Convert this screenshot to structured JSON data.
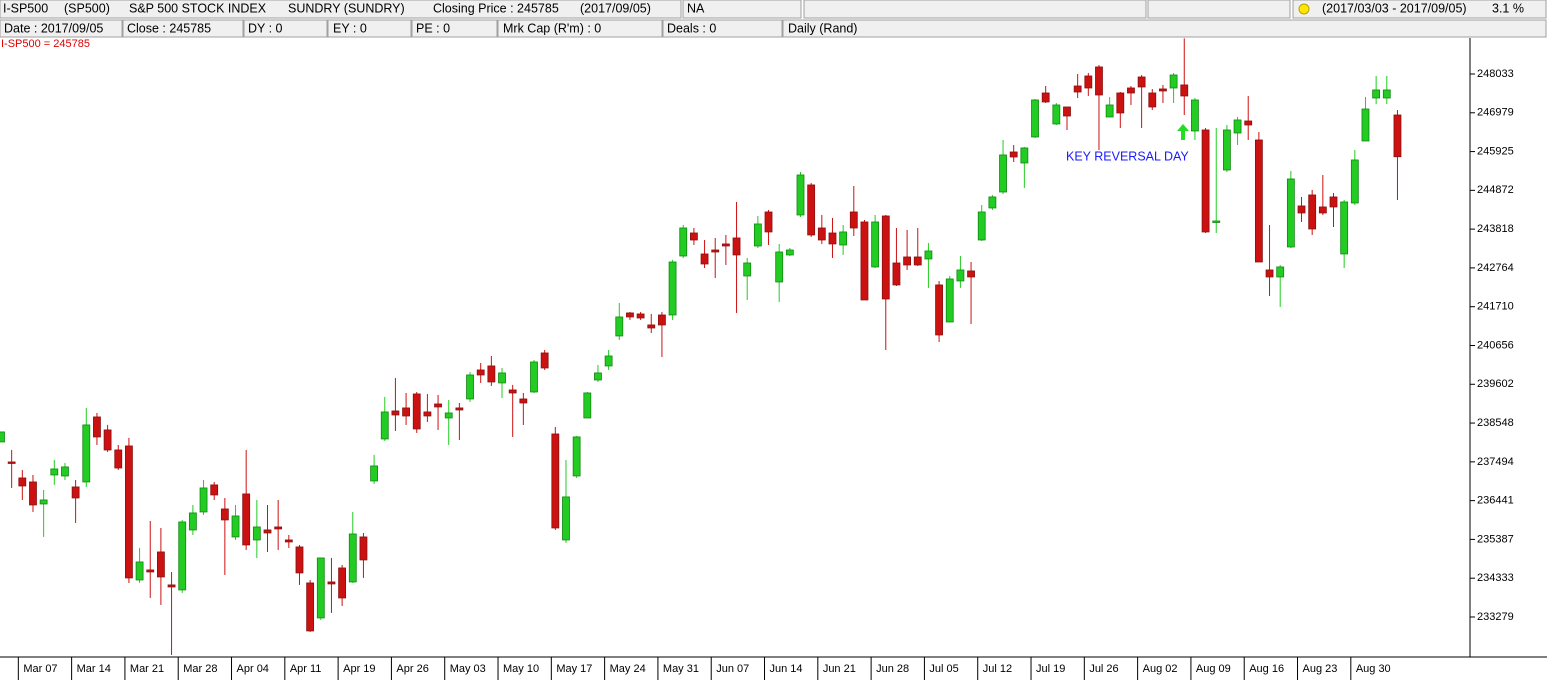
{
  "header": {
    "symbol": "I-SP500",
    "code": "(SP500)",
    "name": "S&P 500 STOCK INDEX",
    "sector": "SUNDRY (SUNDRY)",
    "closing_price": "Closing Price : 245785",
    "closing_date": "(2017/09/05)",
    "status": "NA",
    "period": "(2017/03/03 - 2017/09/05)",
    "change": "3.1 %"
  },
  "info": [
    "Date : 2017/09/05",
    "Close : 245785",
    "DY : 0",
    "EY : 0",
    "PE : 0",
    "Mrk Cap (R'm) : 0",
    "Deals : 0",
    "Daily (Rand)"
  ],
  "chart_data": {
    "type": "candlestick",
    "label": "I-SP500 = 245785",
    "annotation": "KEY REVERSAL DAY",
    "up_color": "#22cc22",
    "down_color": "#cc1111",
    "ylim": [
      232246,
      249011
    ],
    "yticks": [
      248033,
      246979,
      245925,
      244872,
      243818,
      242764,
      241710,
      240656,
      239602,
      238548,
      237494,
      236441,
      235387,
      234333,
      233279
    ],
    "categories": [
      null,
      null,
      "Mar 07",
      null,
      null,
      null,
      null,
      "Mar 14",
      null,
      null,
      null,
      null,
      "Mar 21",
      null,
      null,
      null,
      null,
      "Mar 28",
      null,
      null,
      null,
      null,
      "Apr 04",
      null,
      null,
      null,
      null,
      "Apr 11",
      null,
      null,
      null,
      null,
      "Apr 19",
      null,
      null,
      null,
      null,
      "Apr 26",
      null,
      null,
      null,
      null,
      "May 03",
      null,
      null,
      null,
      null,
      "May 10",
      null,
      null,
      null,
      null,
      "May 17",
      null,
      null,
      null,
      null,
      "May 24",
      null,
      null,
      null,
      null,
      "May 31",
      null,
      null,
      null,
      null,
      "Jun 07",
      null,
      null,
      null,
      null,
      "Jun 14",
      null,
      null,
      null,
      null,
      "Jun 21",
      null,
      null,
      null,
      null,
      "Jun 28",
      null,
      null,
      null,
      null,
      "Jul 05",
      null,
      null,
      null,
      null,
      "Jul 12",
      null,
      null,
      null,
      null,
      "Jul 19",
      null,
      null,
      null,
      null,
      "Jul 26",
      null,
      null,
      null,
      null,
      "Aug 02",
      null,
      null,
      null,
      null,
      "Aug 09",
      null,
      null,
      null,
      null,
      "Aug 16",
      null,
      null,
      null,
      null,
      "Aug 23",
      null,
      null,
      null,
      null,
      "Aug 30",
      null,
      null,
      null,
      null
    ],
    "open": [
      238035,
      237491,
      237057,
      236948,
      236350,
      237138,
      237111,
      236812,
      236948,
      238714,
      238361,
      237817,
      237926,
      234285,
      234557,
      235046,
      234150,
      234014,
      235644,
      236133,
      236867,
      236214,
      235454,
      236622,
      235372,
      235644,
      235725,
      235372,
      235182,
      234204,
      233253,
      234231,
      234611,
      234231,
      235454,
      236975,
      238116,
      238877,
      238959,
      239339,
      238850,
      239067,
      238687,
      238959,
      239203,
      239991,
      240100,
      239638,
      239448,
      239203,
      239393,
      240453,
      238252,
      235372,
      237111,
      238687,
      239719,
      240100,
      240915,
      241540,
      241513,
      241214,
      241485,
      241485,
      243088,
      243713,
      243143,
      243251,
      243415,
      243578,
      242545,
      243360,
      244284,
      242382,
      243116,
      244202,
      245018,
      243849,
      243713,
      243387,
      244284,
      244012,
      242790,
      244175,
      242898,
      243061,
      243061,
      243007,
      242301,
      241295,
      242409,
      242681,
      243523,
      244393,
      244827,
      245914,
      245615,
      246322,
      247517,
      246675,
      247137,
      247707,
      247979,
      248224,
      246865,
      247517,
      247653,
      247952,
      247517,
      247626,
      247653,
      247735,
      246485,
      246512,
      244012,
      245425,
      246430,
      246756,
      246240,
      242708,
      242518,
      243333,
      244447,
      244746,
      244420,
      244692,
      243143,
      244528,
      246213,
      247381,
      247381,
      246919
    ],
    "high": [
      238307,
      237817,
      237274,
      237138,
      236731,
      237546,
      237464,
      237002,
      238959,
      238823,
      238497,
      237953,
      238144,
      235155,
      235888,
      235698,
      234503,
      235916,
      236323,
      237002,
      236948,
      236513,
      236323,
      237817,
      236459,
      236323,
      236459,
      235508,
      235236,
      234285,
      234883,
      234883,
      234693,
      236133,
      235562,
      237682,
      239258,
      239774,
      239366,
      239393,
      239339,
      239312,
      239176,
      239094,
      239937,
      240181,
      240371,
      240045,
      239584,
      239366,
      240263,
      240534,
      238442,
      237546,
      238198,
      239393,
      240127,
      240534,
      241811,
      241567,
      241567,
      241513,
      241567,
      242980,
      243931,
      243849,
      243523,
      243578,
      243659,
      244556,
      243034,
      244175,
      244338,
      243415,
      243306,
      245371,
      245072,
      244202,
      244121,
      243931,
      244990,
      244067,
      244202,
      244202,
      243849,
      243795,
      243849,
      243442,
      242409,
      242545,
      243088,
      242925,
      244474,
      244746,
      246240,
      246104,
      246050,
      247354,
      247707,
      247245,
      247137,
      248033,
      248061,
      248278,
      247409,
      247544,
      247707,
      248006,
      247626,
      247735,
      248061,
      249000,
      247381,
      246566,
      246566,
      246648,
      246865,
      247436,
      246458,
      243931,
      242844,
      245398,
      244692,
      244882,
      245289,
      244800,
      244610,
      245968,
      247409,
      247979,
      247979,
      247055
    ],
    "low": [
      238035,
      236785,
      236459,
      236133,
      235454,
      236867,
      237002,
      235834,
      236812,
      237953,
      237763,
      237274,
      234204,
      234204,
      233796,
      233606,
      232248,
      233932,
      235508,
      236051,
      236459,
      234421,
      235372,
      235100,
      234883,
      235046,
      235100,
      235155,
      234150,
      232873,
      233199,
      233389,
      233579,
      234204,
      234340,
      236894,
      238062,
      238334,
      238497,
      238279,
      238578,
      238361,
      237953,
      238089,
      239122,
      239638,
      239556,
      239230,
      238171,
      238497,
      239366,
      239991,
      235644,
      235291,
      237057,
      238687,
      239665,
      239991,
      240806,
      241350,
      241350,
      240996,
      240344,
      241350,
      243034,
      243387,
      242762,
      242491,
      242844,
      241540,
      241893,
      243306,
      243387,
      241839,
      243088,
      244148,
      243605,
      243415,
      243034,
      243116,
      243632,
      241893,
      242762,
      240534,
      242273,
      242708,
      242817,
      242219,
      240752,
      241295,
      242219,
      241241,
      243496,
      244338,
      244773,
      245642,
      244936,
      246295,
      247245,
      246648,
      246512,
      247381,
      247436,
      245968,
      246865,
      246566,
      247191,
      246566,
      247055,
      247245,
      247245,
      246919,
      246240,
      243713,
      243713,
      245371,
      246104,
      246240,
      242925,
      242002,
      241703,
      243306,
      244012,
      243659,
      244202,
      243876,
      242762,
      244474,
      246213,
      247218,
      247218,
      244610
    ],
    "close": [
      238307,
      237464,
      236839,
      236323,
      236459,
      237301,
      237356,
      236513,
      238497,
      238171,
      237817,
      237328,
      234340,
      234774,
      234503,
      234367,
      234095,
      235861,
      236106,
      236785,
      236595,
      235916,
      236024,
      235236,
      235725,
      235562,
      235671,
      235318,
      234476,
      232900,
      234883,
      234177,
      233796,
      235535,
      234829,
      237383,
      238850,
      238768,
      238741,
      238388,
      238741,
      238986,
      238823,
      238904,
      239855,
      239855,
      239665,
      239910,
      239366,
      239094,
      240208,
      240045,
      235698,
      236541,
      238171,
      239366,
      239910,
      240371,
      241431,
      241431,
      241404,
      241132,
      241214,
      242925,
      243849,
      243523,
      242871,
      243197,
      243360,
      243116,
      242898,
      243958,
      243741,
      243197,
      243251,
      245289,
      243659,
      243523,
      243415,
      243741,
      243849,
      241893,
      244012,
      241920,
      242301,
      242844,
      242844,
      243224,
      240942,
      242464,
      242708,
      242518,
      244284,
      244692,
      245833,
      245778,
      246023,
      247327,
      247273,
      247191,
      246892,
      247544,
      247653,
      247463,
      247191,
      246974,
      247517,
      247680,
      247137,
      247572,
      248006,
      247436,
      247327,
      243741,
      244039,
      246512,
      246784,
      246648,
      242925,
      242518,
      242790,
      245181,
      244257,
      243822,
      244257,
      244420,
      244556,
      245697,
      247082,
      247599,
      247599,
      245785
    ]
  }
}
